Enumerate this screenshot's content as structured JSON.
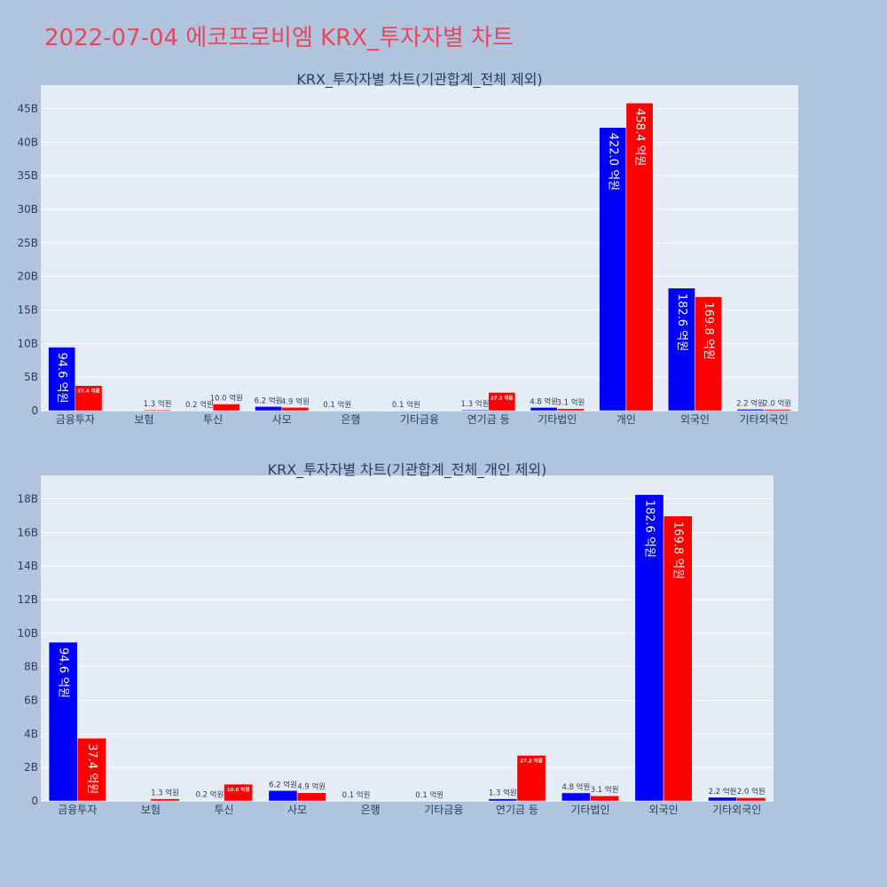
{
  "title": "2022-07-04 에코프로비엠 KRX_투자자별 차트",
  "colors": {
    "buy": "#0000ff",
    "sell": "#ff0000",
    "plot_bg": "#e5ecf6",
    "page_bg": "#b0c4de",
    "title": "#e8475e",
    "outside_label": "#2a3f5f"
  },
  "chart_data": [
    {
      "type": "bar",
      "title": "KRX_투자자별 차트(기관합계_전체 제외)",
      "categories": [
        "금융투자",
        "보험",
        "투신",
        "사모",
        "은행",
        "기타금융",
        "연기금 등",
        "기타법인",
        "개인",
        "외국인",
        "기타외국인"
      ],
      "series": [
        {
          "values": [
            9.46,
            0.0,
            0.02,
            0.62,
            0.01,
            0.01,
            0.13,
            0.48,
            42.2,
            18.26,
            0.22
          ],
          "labels": [
            "94.6 억원",
            "",
            "0.2 억원",
            "6.2 억원",
            "0.1 억원",
            "0.1 억원",
            "1.3 억원",
            "4.8 억원",
            "422.0 억원",
            "182.6 억원",
            "2.2 억원"
          ]
        },
        {
          "values": [
            3.74,
            0.13,
            1.0,
            0.49,
            0.0,
            0.0,
            2.72,
            0.31,
            45.84,
            16.98,
            0.2
          ],
          "labels": [
            "37.4 억원",
            "1.3 억원",
            "10.0 억원",
            "4.9 억원",
            "",
            "",
            "27.2 억원",
            "3.1 억원",
            "458.4 억원",
            "169.8 억원",
            "2.0 억원"
          ]
        }
      ],
      "ylim": [
        0,
        48.5
      ],
      "yticks": [
        0,
        5,
        10,
        15,
        20,
        25,
        30,
        35,
        40,
        45
      ],
      "ytick_labels": [
        "0",
        "5B",
        "10B",
        "15B",
        "20B",
        "25B",
        "30B",
        "35B",
        "40B",
        "45B"
      ],
      "grid": true
    },
    {
      "type": "bar",
      "title": "KRX_투자자별 차트(기관합계_전체_개인 제외)",
      "categories": [
        "금융투자",
        "보험",
        "투신",
        "사모",
        "은행",
        "기타금융",
        "연기금 등",
        "기타법인",
        "외국인",
        "기타외국인"
      ],
      "series": [
        {
          "values": [
            9.46,
            0.0,
            0.02,
            0.62,
            0.01,
            0.01,
            0.13,
            0.48,
            18.26,
            0.22
          ],
          "labels": [
            "94.6 억원",
            "",
            "0.2 억원",
            "6.2 억원",
            "0.1 억원",
            "0.1 억원",
            "1.3 억원",
            "4.8 억원",
            "182.6 억원",
            "2.2 억원"
          ]
        },
        {
          "values": [
            3.74,
            0.13,
            1.0,
            0.49,
            0.0,
            0.0,
            2.72,
            0.31,
            16.98,
            0.2
          ],
          "labels": [
            "37.4 억원",
            "1.3 억원",
            "10.0 억원",
            "4.9 억원",
            "",
            "",
            "27.2 억원",
            "3.1 억원",
            "169.8 억원",
            "2.0 억원"
          ]
        }
      ],
      "ylim": [
        0,
        19.4
      ],
      "yticks": [
        0,
        2,
        4,
        6,
        8,
        10,
        12,
        14,
        16,
        18
      ],
      "ytick_labels": [
        "0",
        "2B",
        "4B",
        "6B",
        "8B",
        "10B",
        "12B",
        "14B",
        "16B",
        "18B"
      ],
      "grid": true
    }
  ]
}
